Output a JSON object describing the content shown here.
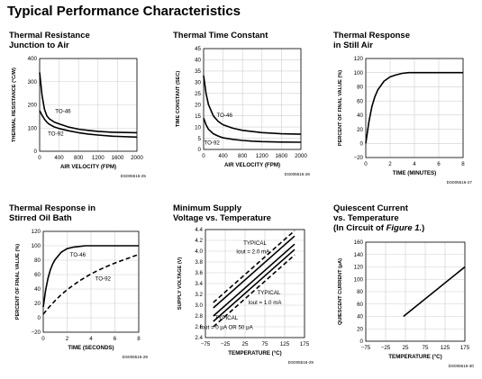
{
  "page": {
    "title": "Typical Performance Characteristics"
  },
  "chart_data": [
    {
      "type": "line",
      "title_lines": [
        "Thermal Resistance",
        "Junction to Air"
      ],
      "xlabel": "AIR VELOCITY (FPM)",
      "ylabel": "THERMAL RESISTANCE (°C/W)",
      "xlim": [
        0,
        2000
      ],
      "ylim": [
        0,
        400
      ],
      "xticks": [
        0,
        400,
        800,
        1200,
        1600,
        2000
      ],
      "yticks": [
        0,
        100,
        200,
        300,
        400
      ],
      "code": "DS005516-25",
      "series": [
        {
          "name": "TO-46",
          "style": "solid",
          "x": [
            0,
            50,
            100,
            150,
            200,
            300,
            400,
            600,
            800,
            1000,
            1200,
            1500,
            2000
          ],
          "y": [
            340,
            240,
            180,
            152,
            140,
            126,
            118,
            104,
            95,
            90,
            86,
            82,
            80
          ]
        },
        {
          "name": "TO-92",
          "style": "solid",
          "x": [
            0,
            50,
            100,
            150,
            200,
            300,
            400,
            600,
            800,
            1000,
            1200,
            1500,
            2000
          ],
          "y": [
            175,
            155,
            138,
            125,
            116,
            105,
            98,
            88,
            80,
            74,
            70,
            65,
            61
          ]
        }
      ],
      "annotations": [
        {
          "text": "TO-46",
          "x": 480,
          "y": 165
        },
        {
          "text": "TO-92",
          "x": 330,
          "y": 68
        }
      ]
    },
    {
      "type": "line",
      "title_lines": [
        "Thermal Time Constant"
      ],
      "xlabel": "AIR VELOCITY (FPM)",
      "ylabel": "TIME CONSTANT (SEC)",
      "xlim": [
        0,
        2000
      ],
      "ylim": [
        0,
        45
      ],
      "xticks": [
        0,
        400,
        800,
        1200,
        1600,
        2000
      ],
      "yticks": [
        0,
        5,
        10,
        15,
        20,
        25,
        30,
        35,
        40,
        45
      ],
      "code": "DS005516-26",
      "series": [
        {
          "name": "TO-46",
          "style": "solid",
          "x": [
            0,
            50,
            100,
            200,
            300,
            400,
            600,
            800,
            1000,
            1200,
            1600,
            2000
          ],
          "y": [
            33,
            25,
            20,
            15,
            12.5,
            11,
            9.5,
            8.5,
            8,
            7.5,
            7,
            6.8
          ]
        },
        {
          "name": "TO-92",
          "style": "solid",
          "x": [
            0,
            50,
            100,
            200,
            300,
            400,
            600,
            800,
            1000,
            1200,
            1600,
            2000
          ],
          "y": [
            14,
            11,
            9,
            7,
            6,
            5.2,
            4.5,
            4,
            3.7,
            3.5,
            3.3,
            3.2
          ]
        }
      ],
      "annotations": [
        {
          "text": "TO-46",
          "x": 430,
          "y": 14.5
        },
        {
          "text": "TO-92",
          "x": 170,
          "y": 2.2
        }
      ]
    },
    {
      "type": "line",
      "title_lines": [
        "Thermal Response",
        "in Still Air"
      ],
      "xlabel": "TIME (MINUTES)",
      "ylabel": "PERCENT OF FINAL VALUE (%)",
      "xlim": [
        0,
        8
      ],
      "ylim": [
        -20,
        120
      ],
      "xticks": [
        0,
        2,
        4,
        6,
        8
      ],
      "yticks": [
        -20,
        0,
        20,
        40,
        60,
        80,
        100,
        120
      ],
      "code": "DS005516-27",
      "series": [
        {
          "name": "",
          "style": "solid",
          "x": [
            0,
            0.25,
            0.5,
            0.75,
            1,
            1.5,
            2,
            2.5,
            3,
            3.5,
            4,
            5,
            6,
            7,
            8
          ],
          "y": [
            0,
            30,
            52,
            66,
            76,
            88,
            94,
            97,
            99,
            100,
            100,
            100,
            100,
            100,
            100
          ]
        }
      ],
      "annotations": []
    },
    {
      "type": "line",
      "title_lines": [
        "Thermal Response in",
        "Stirred Oil Bath"
      ],
      "xlabel": "TIME (SECONDS)",
      "ylabel": "PERCENT OF FINAL VALUE (%)",
      "xlim": [
        0,
        8
      ],
      "ylim": [
        -20,
        120
      ],
      "xticks": [
        0,
        2,
        4,
        6,
        8
      ],
      "yticks": [
        -20,
        0,
        20,
        40,
        60,
        80,
        100,
        120
      ],
      "code": "DS005516-28",
      "series": [
        {
          "name": "TO-46",
          "style": "solid",
          "x": [
            0,
            0.2,
            0.4,
            0.6,
            0.8,
            1,
            1.5,
            2,
            2.5,
            3,
            3.5,
            4,
            5,
            6,
            7,
            8
          ],
          "y": [
            15,
            38,
            55,
            67,
            75,
            81,
            91,
            96,
            98,
            99,
            100,
            100,
            100,
            100,
            100,
            100
          ]
        },
        {
          "name": "TO-92",
          "style": "dashed",
          "x": [
            0,
            0.5,
            1,
            1.5,
            2,
            3,
            4,
            5,
            6,
            7,
            8
          ],
          "y": [
            5,
            15,
            24,
            32,
            39,
            51,
            61,
            69,
            76,
            82,
            88
          ]
        }
      ],
      "annotations": [
        {
          "text": "TO-46",
          "x": 2.9,
          "y": 85
        },
        {
          "text": "TO-92",
          "x": 5.0,
          "y": 52
        }
      ]
    },
    {
      "type": "line",
      "title_lines": [
        "Minimum Supply",
        "Voltage vs. Temperature"
      ],
      "xlabel": "TEMPERATURE (°C)",
      "ylabel": "SUPPLY VOLTAGE (V)",
      "xlim": [
        -75,
        175
      ],
      "ylim": [
        2.4,
        4.4
      ],
      "xticks": [
        -75,
        -25,
        25,
        75,
        125,
        175
      ],
      "yticks": [
        2.4,
        2.6,
        2.8,
        3.0,
        3.2,
        3.4,
        3.6,
        3.8,
        4.0,
        4.2,
        4.4
      ],
      "code": "DS005516-29",
      "series": [
        {
          "name": "IOUT = 2.0 mA",
          "style": "solid",
          "x": [
            -55,
            150
          ],
          "y": [
            2.95,
            4.28
          ]
        },
        {
          "name": "IOUT = 1.0 mA",
          "style": "solid",
          "x": [
            -55,
            150
          ],
          "y": [
            2.8,
            4.13
          ]
        },
        {
          "name": "IOUT = 0 µA OR 50 µA",
          "style": "solid",
          "x": [
            -55,
            150
          ],
          "y": [
            2.7,
            4.03
          ]
        },
        {
          "name": "",
          "style": "dashed",
          "x": [
            -55,
            150
          ],
          "y": [
            3.05,
            4.38
          ]
        },
        {
          "name": "",
          "style": "dashed",
          "x": [
            -55,
            150
          ],
          "y": [
            2.6,
            3.93
          ]
        }
      ],
      "annotations": [
        {
          "text": "TYPICAL",
          "x": 50,
          "y": 4.12
        },
        {
          "text": "Iout = 2.0 mA",
          "x": 45,
          "y": 3.96
        },
        {
          "text": "TYPICAL",
          "x": 85,
          "y": 3.2
        },
        {
          "text": "Iout = 1.0 mA",
          "x": 75,
          "y": 3.02
        },
        {
          "text": "TYPICAL",
          "x": -22,
          "y": 2.73
        },
        {
          "text": "Iout = 0 µA OR 50 µA",
          "x": -22,
          "y": 2.56
        }
      ]
    },
    {
      "type": "line",
      "title_lines": [
        "Quiescent Current",
        "vs. Temperature",
        "(In Circuit of Figure 1.)"
      ],
      "xlabel": "TEMPERATURE (°C)",
      "ylabel": "QUIESCENT CURRENT (µA)",
      "xlim": [
        -75,
        175
      ],
      "ylim": [
        0,
        160
      ],
      "xticks": [
        -75,
        -25,
        25,
        75,
        125,
        175
      ],
      "yticks": [
        0,
        20,
        40,
        60,
        80,
        100,
        120,
        140,
        160
      ],
      "code": "DS005516-30",
      "series": [
        {
          "name": "",
          "style": "solid",
          "x": [
            20,
            175
          ],
          "y": [
            40,
            120
          ]
        }
      ],
      "annotations": []
    }
  ]
}
